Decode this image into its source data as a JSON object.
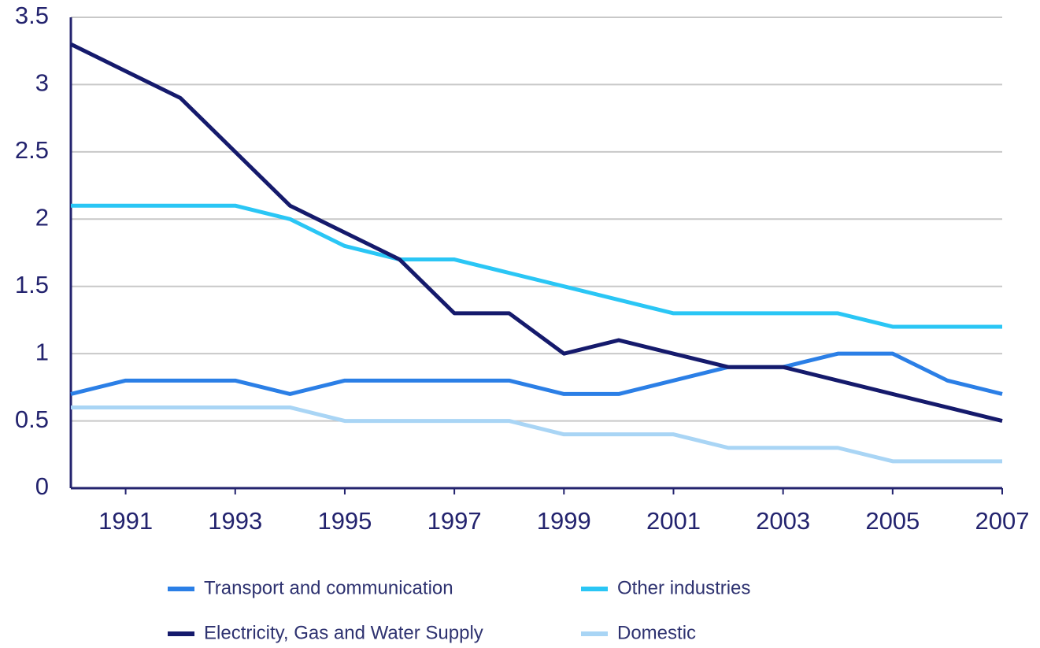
{
  "chart_data": {
    "type": "line",
    "x": [
      1990,
      1991,
      1992,
      1993,
      1994,
      1995,
      1996,
      1997,
      1998,
      1999,
      2000,
      2001,
      2002,
      2003,
      2004,
      2005,
      2006,
      2007
    ],
    "xlim": [
      1990,
      2007
    ],
    "xticks": [
      1991,
      1993,
      1995,
      1997,
      1999,
      2001,
      2003,
      2005,
      2007
    ],
    "ylim": [
      0,
      3.5
    ],
    "yticks": [
      0,
      0.5,
      1,
      1.5,
      2,
      2.5,
      3,
      3.5
    ],
    "grid": true,
    "legend": "bottom",
    "series": [
      {
        "name": "Transport and communication",
        "color": "#2b7fe6",
        "values": [
          0.7,
          0.8,
          0.8,
          0.8,
          0.7,
          0.8,
          0.8,
          0.8,
          0.8,
          0.7,
          0.7,
          0.8,
          0.9,
          0.9,
          1.0,
          1.0,
          0.8,
          0.7
        ]
      },
      {
        "name": "Other industries",
        "color": "#2ac6f5",
        "values": [
          2.1,
          2.1,
          2.1,
          2.1,
          2.0,
          1.8,
          1.7,
          1.7,
          1.6,
          1.5,
          1.4,
          1.3,
          1.3,
          1.3,
          1.3,
          1.2,
          1.2,
          1.2
        ]
      },
      {
        "name": "Electricity, Gas and Water Supply",
        "color": "#151a6c",
        "values": [
          3.3,
          3.1,
          2.9,
          2.5,
          2.1,
          1.9,
          1.7,
          1.3,
          1.3,
          1.0,
          1.1,
          1.0,
          0.9,
          0.9,
          0.8,
          0.7,
          0.6,
          0.5
        ]
      },
      {
        "name": "Domestic",
        "color": "#a9d5f5",
        "values": [
          0.6,
          0.6,
          0.6,
          0.6,
          0.6,
          0.5,
          0.5,
          0.5,
          0.5,
          0.4,
          0.4,
          0.4,
          0.3,
          0.3,
          0.3,
          0.2,
          0.2,
          0.2
        ]
      }
    ]
  }
}
